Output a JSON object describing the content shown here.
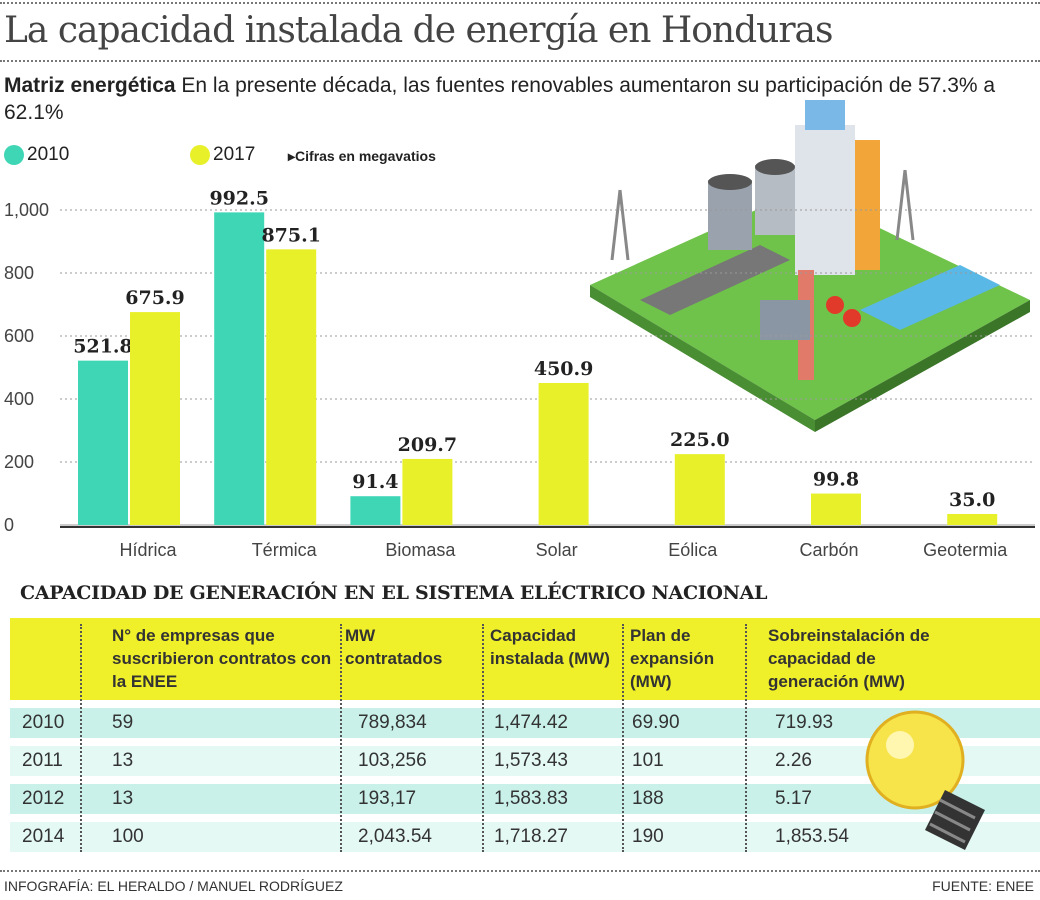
{
  "title": "La capacidad instalada de energía en Honduras",
  "subtitle_bold": "Matriz energética",
  "subtitle": "En la presente década, las fuentes renovables aumentaron su participación de 57.3% a 62.1%",
  "note": "▸Cifras en megavatios",
  "colors": {
    "s2010": "#3fd6b6",
    "s2017": "#e8f02a",
    "table_header": "#f0f02a",
    "row_dark": "#c9f1ea",
    "row_light": "#e4f8f4"
  },
  "chart_data": {
    "type": "bar",
    "categories": [
      "Hídrica",
      "Térmica",
      "Biomasa",
      "Solar",
      "Eólica",
      "Carbón",
      "Geotermia"
    ],
    "series": [
      {
        "name": "2010",
        "values": [
          521.8,
          992.5,
          91.4,
          null,
          null,
          null,
          null
        ]
      },
      {
        "name": "2017",
        "values": [
          675.9,
          875.1,
          209.7,
          450.9,
          225.0,
          99.8,
          35.0
        ]
      }
    ],
    "data_labels_2010": [
      "521.8",
      "992.5",
      "91.4",
      "",
      "",
      "",
      ""
    ],
    "data_labels_2017": [
      "675.9",
      "875.1",
      "209.7",
      "450.9",
      "225.0",
      "99.8",
      "35.0"
    ],
    "yticks": [
      "0",
      "200",
      "400",
      "600",
      "800",
      "1,000"
    ],
    "ytick_values": [
      0,
      200,
      400,
      600,
      800,
      1000
    ],
    "ylim": [
      0,
      1000
    ],
    "grid": true,
    "legend": "top-left"
  },
  "table": {
    "title": "CAPACIDAD DE GENERACIÓN EN EL SISTEMA ELÉCTRICO NACIONAL",
    "headers": [
      "",
      "N° de empresas que suscribieron contratos con la ENEE",
      "MW contratados",
      "Capacidad instalada (MW)",
      "Plan de expansión (MW)",
      "Sobreinstalación de capacidad de generación (MW)"
    ],
    "rows": [
      [
        "2010",
        "59",
        "789,834",
        "1,474.42",
        "69.90",
        "719.93"
      ],
      [
        "2011",
        "13",
        "103,256",
        "1,573.43",
        "101",
        "2.26"
      ],
      [
        "2012",
        "13",
        "193,17",
        "1,583.83",
        "188",
        "5.17"
      ],
      [
        "2014",
        "100",
        "2,043.54",
        "1,718.27",
        "190",
        "1,853.54"
      ]
    ]
  },
  "footer": {
    "credit": "INFOGRAFÍA: EL HERALDO / MANUEL RODRÍGUEZ",
    "source": "FUENTE: ENEE"
  }
}
